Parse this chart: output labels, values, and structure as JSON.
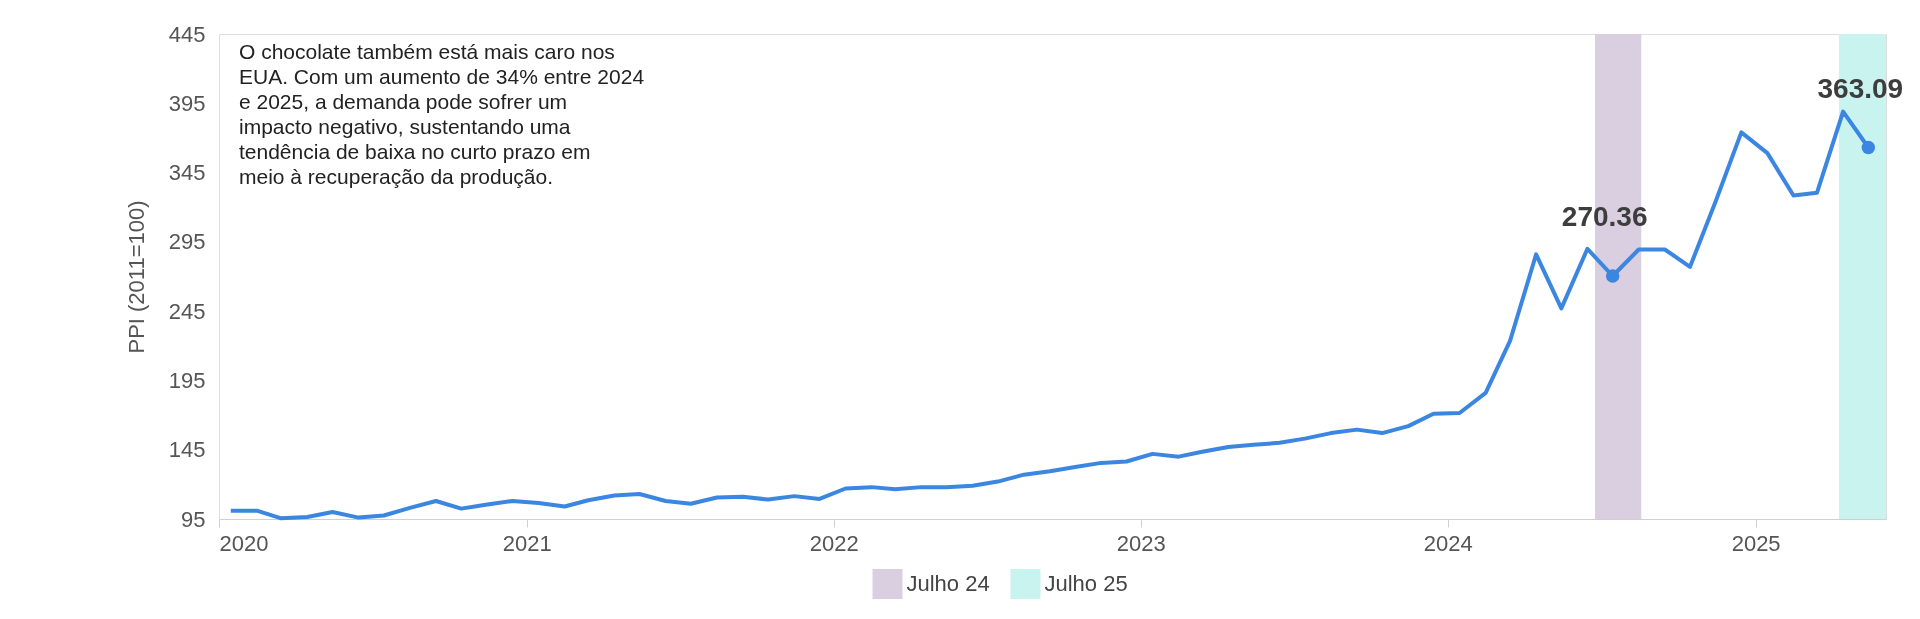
{
  "chart_data": {
    "type": "line",
    "ylabel": "PPI (2011=100)",
    "annotations": [
      "O chocolate também está mais caro nos EUA. Com um aumento de 34% entre 2024 e 2025, a demanda pode sofrer um impacto negativo, sustentando uma tendência de baixa no curto prazo em meio à recuperação da produção."
    ],
    "x": [
      "2020-01-15",
      "2020-02-15",
      "2020-03-15",
      "2020-04-15",
      "2020-05-15",
      "2020-06-15",
      "2020-07-15",
      "2020-08-15",
      "2020-09-15",
      "2020-10-15",
      "2020-11-15",
      "2020-12-15",
      "2021-01-15",
      "2021-02-15",
      "2021-03-15",
      "2021-04-15",
      "2021-05-15",
      "2021-06-15",
      "2021-07-15",
      "2021-08-15",
      "2021-09-15",
      "2021-10-15",
      "2021-11-15",
      "2021-12-15",
      "2022-01-15",
      "2022-02-15",
      "2022-03-15",
      "2022-04-15",
      "2022-05-15",
      "2022-06-15",
      "2022-07-15",
      "2022-08-15",
      "2022-09-15",
      "2022-10-15",
      "2022-11-15",
      "2022-12-15",
      "2023-01-15",
      "2023-02-15",
      "2023-03-15",
      "2023-04-15",
      "2023-05-15",
      "2023-06-15",
      "2023-07-15",
      "2023-08-15",
      "2023-09-15",
      "2023-10-15",
      "2023-11-15",
      "2023-12-15",
      "2024-01-15",
      "2024-02-15",
      "2024-03-15",
      "2024-04-15",
      "2024-05-15",
      "2024-06-15",
      "2024-07-15",
      "2024-08-15",
      "2024-09-15",
      "2024-10-15",
      "2024-11-15",
      "2024-12-15",
      "2025-01-15",
      "2025-02-15",
      "2025-03-15",
      "2025-04-15",
      "2025-05-15"
    ],
    "series": [
      {
        "color": "#3b86e0",
        "values": [
          101,
          101,
          95.5,
          96.5,
          100,
          96,
          97.5,
          103,
          108,
          102.5,
          105.5,
          108,
          106.5,
          104,
          108.5,
          112,
          113,
          108,
          106,
          110.5,
          111,
          109,
          111.5,
          109.5,
          117,
          118,
          116.5,
          118,
          118,
          119,
          122,
          127,
          129.5,
          132.5,
          135.5,
          136.5,
          142,
          140,
          143.5,
          147,
          148.5,
          150,
          153,
          157,
          159.5,
          157,
          162,
          171,
          171.5,
          186,
          223.5,
          286,
          247,
          290,
          270.36,
          289.5,
          289.5,
          277,
          325,
          374,
          359,
          328.5,
          330.5,
          389,
          363.09
        ],
        "value_labels": [
          null,
          null,
          null,
          null,
          null,
          null,
          null,
          null,
          null,
          null,
          null,
          null,
          null,
          null,
          null,
          null,
          null,
          null,
          null,
          null,
          null,
          null,
          null,
          null,
          null,
          null,
          null,
          null,
          null,
          null,
          null,
          null,
          null,
          null,
          null,
          null,
          null,
          null,
          null,
          null,
          null,
          null,
          null,
          null,
          null,
          null,
          null,
          null,
          null,
          null,
          null,
          null,
          null,
          null,
          "270.36",
          null,
          null,
          null,
          null,
          null,
          null,
          null,
          null,
          null,
          "363.09"
        ]
      }
    ],
    "xlim": [
      "2020-01-01",
      "2025-06-05"
    ],
    "xticks": [
      {
        "value": "2020-01-01",
        "label": "2020"
      },
      {
        "value": "2021-01-01",
        "label": "2021"
      },
      {
        "value": "2022-01-01",
        "label": "2022"
      },
      {
        "value": "2023-01-01",
        "label": "2023"
      },
      {
        "value": "2024-01-01",
        "label": "2024"
      },
      {
        "value": "2025-01-01",
        "label": "2025"
      }
    ],
    "ylim": [
      95,
      445
    ],
    "yticks": [
      95,
      145,
      195,
      245,
      295,
      345,
      395,
      445
    ],
    "bands": [
      {
        "axis": "x",
        "from": "2024-06-24",
        "to": "2024-08-18",
        "label": "Julho 24",
        "color": "#d9cfe0"
      },
      {
        "axis": "x",
        "from": "2025-04-10",
        "to": "2025-06-05",
        "label": "Julho 25",
        "color": "#c8f3ef"
      }
    ],
    "grid": false,
    "legend": "bottom",
    "line_style": "solid"
  }
}
